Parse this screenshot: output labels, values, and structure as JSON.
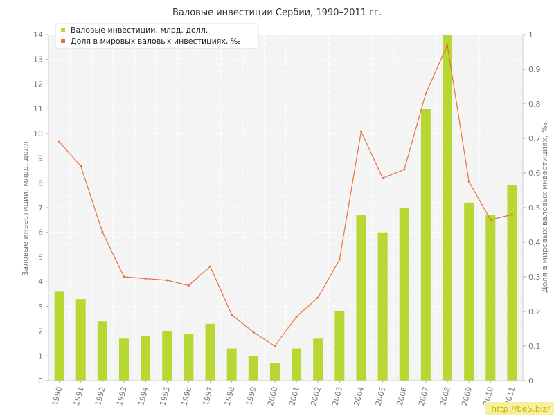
{
  "chart_data": {
    "type": "bar+line",
    "title": "Валовые инвестиции Сербии, 1990–2011 гг.",
    "ylabel_left": "Валовые инвестиции, млрд. долл.",
    "ylabel_right": "Доля в мировых валовых инвестициях, ‰",
    "categories": [
      "1990",
      "1991",
      "1992",
      "1993",
      "1994",
      "1995",
      "1996",
      "1997",
      "1998",
      "1999",
      "2000",
      "2001",
      "2002",
      "2003",
      "2004",
      "2005",
      "2006",
      "2007",
      "2008",
      "2009",
      "2010",
      "2011"
    ],
    "series": [
      {
        "name": "Валовые инвестиции, млрд. долл.",
        "type": "bar",
        "axis": "left",
        "color": "#b7d832",
        "values": [
          3.6,
          3.3,
          2.4,
          1.7,
          1.8,
          2.0,
          1.9,
          2.3,
          1.3,
          1.0,
          0.7,
          1.3,
          1.7,
          2.8,
          6.7,
          6.0,
          7.0,
          11.0,
          14.0,
          7.2,
          6.7,
          7.9
        ]
      },
      {
        "name": "Доля в мировых валовых инвестициях, ‰",
        "type": "line",
        "axis": "right",
        "color": "#e8703a",
        "values": [
          0.69,
          0.62,
          0.43,
          0.3,
          0.295,
          0.29,
          0.275,
          0.33,
          0.19,
          0.14,
          0.1,
          0.185,
          0.24,
          0.35,
          0.72,
          0.585,
          0.61,
          0.83,
          0.97,
          0.575,
          0.465,
          0.48
        ]
      }
    ],
    "ylim_left": [
      0,
      14
    ],
    "yticks_left": [
      "0",
      "1",
      "2",
      "3",
      "4",
      "5",
      "6",
      "7",
      "8",
      "9",
      "10",
      "11",
      "12",
      "13",
      "14"
    ],
    "ylim_right": [
      0,
      1
    ],
    "yticks_right": [
      "0",
      "0.1",
      "0.2",
      "0.3",
      "0.4",
      "0.5",
      "0.6",
      "0.7",
      "0.8",
      "0.9",
      "1"
    ],
    "grid": true,
    "legend_position": "top-left"
  },
  "watermark": "http://be5.biz/"
}
